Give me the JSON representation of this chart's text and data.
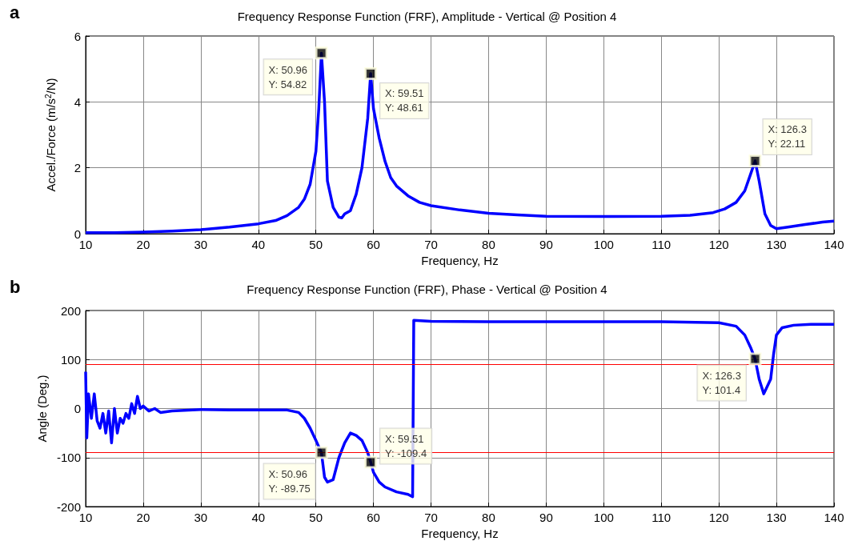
{
  "chart_data": [
    {
      "type": "line",
      "title": "Frequency Response Function (FRF), Amplitude - Vertical @ Position 4",
      "xlabel": "Frequency, Hz",
      "ylabel": "Accel./Force (m/s$^{2}$/N)",
      "xlim": [
        10,
        140
      ],
      "xticks": [
        10,
        20,
        30,
        40,
        50,
        60,
        70,
        80,
        90,
        100,
        110,
        120,
        130,
        140
      ],
      "ylim": [
        0,
        6
      ],
      "yticks": [
        0,
        2,
        4,
        6
      ],
      "grid": true,
      "marker": "none",
      "annotations": [
        "a",
        {
          "text": "X: 50.96\nY: 54.82",
          "x": 50.96,
          "y": 5.482
        },
        {
          "text": "X: 59.51\nY: 48.61",
          "x": 59.51,
          "y": 4.861
        },
        {
          "text": "X: 126.3\nY: 22.11",
          "x": 126.3,
          "y": 2.211
        }
      ],
      "series": [
        {
          "color": "#0000ff",
          "x": [
            10,
            15,
            20,
            25,
            30,
            35,
            40,
            43,
            45,
            47,
            48,
            49,
            50,
            50.5,
            50.96,
            51.5,
            52,
            53,
            54,
            54.5,
            55,
            56,
            57,
            58,
            59,
            59.51,
            60,
            61,
            62,
            63,
            64,
            66,
            68,
            70,
            75,
            80,
            85,
            90,
            100,
            110,
            115,
            119,
            121,
            123,
            124.5,
            125.5,
            126.3,
            127,
            128,
            129,
            130,
            132,
            135,
            138,
            140
          ],
          "values": [
            0.03,
            0.03,
            0.05,
            0.08,
            0.12,
            0.2,
            0.3,
            0.4,
            0.55,
            0.8,
            1.05,
            1.5,
            2.5,
            3.8,
            5.48,
            4.0,
            1.6,
            0.8,
            0.5,
            0.48,
            0.6,
            0.7,
            1.2,
            2.0,
            3.5,
            4.86,
            3.8,
            2.9,
            2.2,
            1.7,
            1.45,
            1.15,
            0.95,
            0.85,
            0.72,
            0.62,
            0.57,
            0.53,
            0.52,
            0.53,
            0.56,
            0.64,
            0.75,
            0.95,
            1.3,
            1.8,
            2.21,
            1.6,
            0.6,
            0.25,
            0.15,
            0.2,
            0.28,
            0.35,
            0.38
          ]
        }
      ]
    },
    {
      "type": "line",
      "title": "Frequency Response Function (FRF), Phase - Vertical @ Position 4",
      "xlabel": "Frequency, Hz",
      "ylabel": "Angle (Deg.)",
      "xlim": [
        10,
        140
      ],
      "xticks": [
        10,
        20,
        30,
        40,
        50,
        60,
        70,
        80,
        90,
        100,
        110,
        120,
        130,
        140
      ],
      "ylim": [
        -200,
        200
      ],
      "yticks": [
        -200,
        -100,
        0,
        100,
        200
      ],
      "grid": true,
      "marker": "none",
      "ref_lines": [
        {
          "axis": "y",
          "value": 90,
          "color": "#ff0000"
        },
        {
          "axis": "y",
          "value": -90,
          "color": "#ff0000"
        }
      ],
      "annotations": [
        "b",
        {
          "text": "X: 50.96\nY: -89.75",
          "x": 50.96,
          "y": -89.75
        },
        {
          "text": "X: 59.51\nY: -109.4",
          "x": 59.51,
          "y": -109.4
        },
        {
          "text": "X: 126.3\nY: 101.4",
          "x": 126.3,
          "y": 101.4
        }
      ],
      "series": [
        {
          "color": "#0000ff",
          "x": [
            10,
            10.2,
            10.5,
            11,
            11.5,
            12,
            12.5,
            13,
            13.5,
            14,
            14.5,
            15,
            15.5,
            16,
            16.5,
            17,
            17.5,
            18,
            18.5,
            19,
            19.5,
            20,
            21,
            22,
            23,
            25,
            30,
            35,
            40,
            45,
            47,
            48,
            49,
            50,
            50.96,
            51.5,
            52,
            53,
            54,
            55,
            56,
            57,
            58,
            59,
            59.51,
            60,
            61,
            62,
            64,
            66,
            66.8,
            67,
            70,
            80,
            90,
            100,
            110,
            120,
            123,
            124.5,
            125.5,
            126.3,
            127,
            127.8,
            129,
            129.5,
            130,
            131,
            133,
            136,
            140
          ],
          "values": [
            75,
            -60,
            30,
            -20,
            30,
            -25,
            -40,
            -10,
            -50,
            -5,
            -70,
            0,
            -50,
            -20,
            -30,
            -10,
            -20,
            10,
            -10,
            25,
            0,
            5,
            -5,
            0,
            -8,
            -5,
            -2,
            -3,
            -3,
            -3,
            -8,
            -20,
            -40,
            -65,
            -90,
            -140,
            -150,
            -145,
            -100,
            -70,
            -50,
            -55,
            -65,
            -90,
            -109,
            -130,
            -150,
            -160,
            -170,
            -175,
            -180,
            180,
            178,
            177,
            177,
            177,
            177,
            175,
            168,
            150,
            125,
            101,
            60,
            30,
            60,
            110,
            150,
            165,
            170,
            172,
            172
          ]
        }
      ]
    }
  ]
}
